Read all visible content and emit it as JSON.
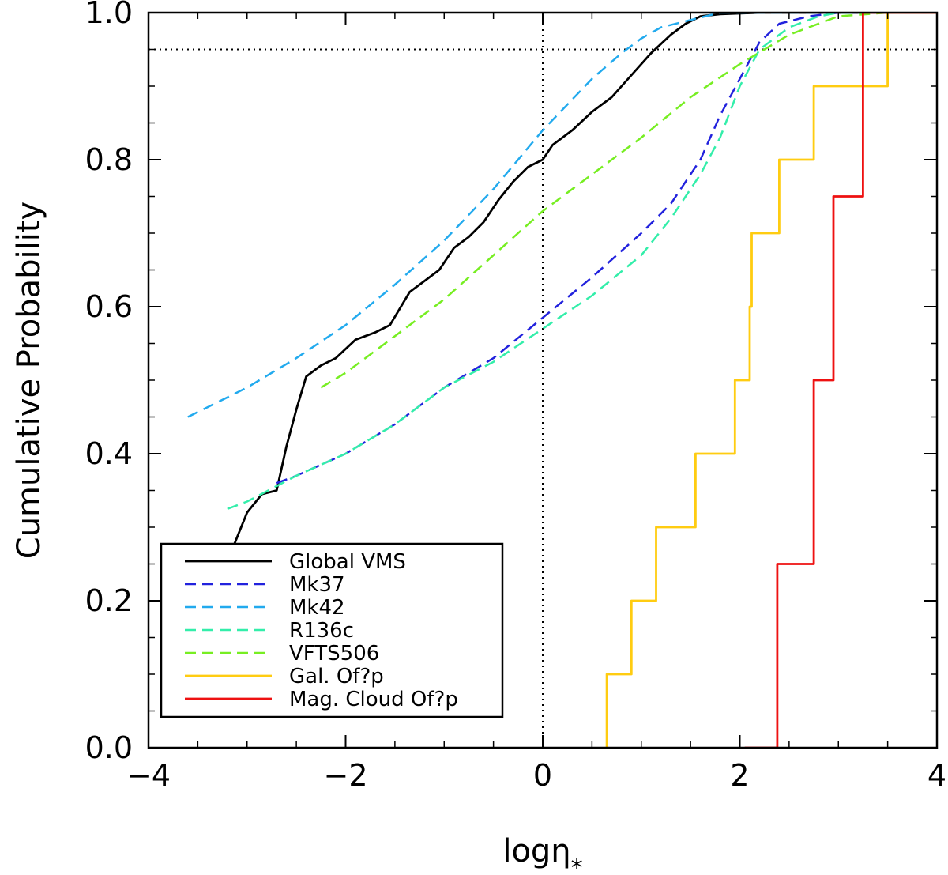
{
  "chart_data": {
    "type": "line",
    "title": "",
    "xlabel": "logη",
    "xlabel_subscript": "*",
    "ylabel": "Cumulative Probability",
    "xlim": [
      -4,
      4
    ],
    "ylim": [
      0,
      1
    ],
    "x_ticks": [
      -4,
      -2,
      0,
      2,
      4
    ],
    "x_tick_labels": [
      "−4",
      "−2",
      "0",
      "2",
      "4"
    ],
    "y_ticks": [
      0,
      0.2,
      0.4,
      0.6,
      0.8,
      1.0
    ],
    "y_tick_labels": [
      "0.0",
      "0.2",
      "0.4",
      "0.6",
      "0.8",
      "1.0"
    ],
    "grid": false,
    "legend_position": "bottom-left",
    "reference_lines": [
      {
        "orientation": "vertical",
        "x": 0,
        "style": "dotted",
        "color": "#000000"
      },
      {
        "orientation": "horizontal",
        "y": 0.95,
        "style": "dotted",
        "color": "#000000"
      }
    ],
    "series": [
      {
        "name": "Global VMS",
        "color": "#000000",
        "style": "solid",
        "step": false,
        "x": [
          -3.65,
          -3.5,
          -3.3,
          -3.15,
          -3.0,
          -2.85,
          -2.7,
          -2.6,
          -2.5,
          -2.4,
          -2.25,
          -2.1,
          -1.9,
          -1.7,
          -1.55,
          -1.35,
          -1.2,
          -1.05,
          -0.9,
          -0.75,
          -0.6,
          -0.45,
          -0.3,
          -0.15,
          0.0,
          0.1,
          0.3,
          0.5,
          0.7,
          0.9,
          1.1,
          1.3,
          1.45,
          1.6,
          1.8,
          2.2,
          3.0,
          4.0
        ],
        "y": [
          0.13,
          0.17,
          0.22,
          0.27,
          0.32,
          0.345,
          0.35,
          0.41,
          0.46,
          0.505,
          0.52,
          0.53,
          0.555,
          0.565,
          0.575,
          0.62,
          0.635,
          0.65,
          0.68,
          0.695,
          0.715,
          0.745,
          0.77,
          0.79,
          0.8,
          0.82,
          0.84,
          0.865,
          0.885,
          0.915,
          0.945,
          0.97,
          0.985,
          0.995,
          0.998,
          1.0,
          1.0,
          1.0
        ]
      },
      {
        "name": "Mk37",
        "color": "#2222dd",
        "style": "dashed",
        "step": false,
        "x": [
          -2.7,
          -2.5,
          -2.0,
          -1.5,
          -1.0,
          -0.5,
          0.0,
          0.5,
          1.0,
          1.3,
          1.6,
          1.8,
          2.0,
          2.2,
          2.4,
          2.7,
          3.0,
          4.0
        ],
        "y": [
          0.36,
          0.37,
          0.4,
          0.44,
          0.49,
          0.53,
          0.585,
          0.64,
          0.7,
          0.74,
          0.8,
          0.86,
          0.91,
          0.96,
          0.985,
          0.995,
          1.0,
          1.0
        ]
      },
      {
        "name": "Mk42",
        "color": "#22aaee",
        "style": "dashed",
        "step": false,
        "x": [
          -3.6,
          -3.0,
          -2.5,
          -2.0,
          -1.5,
          -1.0,
          -0.5,
          0.0,
          0.5,
          0.8,
          1.0,
          1.2,
          1.5,
          1.8,
          2.5,
          4.0
        ],
        "y": [
          0.45,
          0.49,
          0.53,
          0.575,
          0.63,
          0.69,
          0.76,
          0.84,
          0.91,
          0.945,
          0.965,
          0.98,
          0.99,
          1.0,
          1.0,
          1.0
        ]
      },
      {
        "name": "R136c",
        "color": "#33eeaa",
        "style": "dashed",
        "step": false,
        "x": [
          -3.2,
          -3.0,
          -2.5,
          -2.0,
          -1.5,
          -1.0,
          -0.5,
          0.0,
          0.5,
          1.0,
          1.3,
          1.6,
          1.8,
          2.0,
          2.2,
          2.5,
          2.8,
          3.0,
          4.0
        ],
        "y": [
          0.325,
          0.335,
          0.37,
          0.4,
          0.44,
          0.49,
          0.525,
          0.57,
          0.615,
          0.67,
          0.72,
          0.78,
          0.83,
          0.9,
          0.95,
          0.98,
          0.995,
          1.0,
          1.0
        ]
      },
      {
        "name": "VFTS506",
        "color": "#77ee22",
        "style": "dashed",
        "step": false,
        "x": [
          -2.25,
          -2.0,
          -1.5,
          -1.0,
          -0.5,
          0.0,
          0.5,
          1.0,
          1.5,
          2.0,
          2.5,
          3.0,
          3.5,
          4.0
        ],
        "y": [
          0.49,
          0.51,
          0.56,
          0.61,
          0.67,
          0.73,
          0.78,
          0.83,
          0.885,
          0.93,
          0.97,
          0.995,
          1.0,
          1.0
        ]
      },
      {
        "name": "Gal. Of?p",
        "color": "#ffcc11",
        "style": "solid",
        "step": true,
        "x": [
          0.65,
          0.65,
          0.9,
          0.9,
          1.15,
          1.15,
          1.55,
          1.55,
          1.95,
          1.95,
          2.1,
          2.1,
          2.12,
          2.12,
          2.4,
          2.4,
          2.75,
          2.75,
          3.5,
          3.5,
          4.0
        ],
        "y": [
          0.0,
          0.1,
          0.1,
          0.2,
          0.2,
          0.3,
          0.3,
          0.4,
          0.4,
          0.5,
          0.5,
          0.6,
          0.6,
          0.7,
          0.7,
          0.8,
          0.8,
          0.9,
          0.9,
          1.0,
          1.0
        ]
      },
      {
        "name": "Mag. Cloud Of?p",
        "color": "#ee1111",
        "style": "solid",
        "step": true,
        "x": [
          2.05,
          2.38,
          2.38,
          2.75,
          2.75,
          2.95,
          2.95,
          3.25,
          3.25,
          4.0
        ],
        "y": [
          0.0,
          0.0,
          0.25,
          0.25,
          0.5,
          0.5,
          0.75,
          0.75,
          1.0,
          1.0
        ]
      }
    ]
  }
}
